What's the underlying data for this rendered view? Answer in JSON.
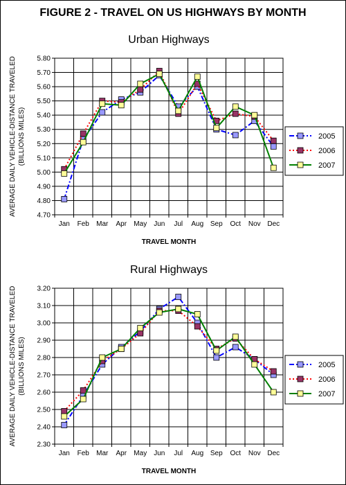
{
  "figure": {
    "title": "FIGURE 2 - TRAVEL ON US HIGHWAYS BY MONTH"
  },
  "chart_data": [
    {
      "type": "line",
      "title": "Urban Highways",
      "xlabel": "TRAVEL MONTH",
      "ylabel_lines": [
        "AVERAGE DAILY VEHICLE-DISTANCE TRAVELED",
        "(BILLIONS MILES)"
      ],
      "categories": [
        "Jan",
        "Feb",
        "Mar",
        "Apr",
        "May",
        "Jun",
        "Jul",
        "Aug",
        "Sep",
        "Oct",
        "Nov",
        "Dec"
      ],
      "ylim": [
        4.7,
        5.8
      ],
      "yticks": [
        "4.70",
        "4.80",
        "4.90",
        "5.00",
        "5.10",
        "5.20",
        "5.30",
        "5.40",
        "5.50",
        "5.60",
        "5.70",
        "5.80"
      ],
      "grid": true,
      "legend_position": "right",
      "series": [
        {
          "name": "2005",
          "color": "#0000ff",
          "marker_fill": "#9999ff",
          "dash": "dashdot",
          "values": [
            4.81,
            5.23,
            5.42,
            5.51,
            5.56,
            5.68,
            5.46,
            5.6,
            5.3,
            5.26,
            5.36,
            5.18
          ]
        },
        {
          "name": "2006",
          "color": "#ff0000",
          "marker_fill": "#993366",
          "dash": "dot",
          "values": [
            5.02,
            5.27,
            5.5,
            5.49,
            5.58,
            5.71,
            5.41,
            5.62,
            5.36,
            5.41,
            5.39,
            5.22
          ]
        },
        {
          "name": "2007",
          "color": "#008000",
          "marker_fill": "#ffff99",
          "dash": "solid",
          "values": [
            4.99,
            5.21,
            5.48,
            5.47,
            5.62,
            5.69,
            5.43,
            5.67,
            5.31,
            5.46,
            5.4,
            5.03
          ]
        }
      ]
    },
    {
      "type": "line",
      "title": "Rural Highways",
      "xlabel": "TRAVEL MONTH",
      "ylabel_lines": [
        "AVERAGE DAILY VEHICLE-DISTANCE TRAVELED",
        "(BILLIONS MILES)"
      ],
      "categories": [
        "Jan",
        "Feb",
        "Mar",
        "Apr",
        "May",
        "Jun",
        "Jul",
        "Aug",
        "Sep",
        "Oct",
        "Nov",
        "Dec"
      ],
      "ylim": [
        2.3,
        3.2
      ],
      "yticks": [
        "2.30",
        "2.40",
        "2.50",
        "2.60",
        "2.70",
        "2.80",
        "2.90",
        "3.00",
        "3.10",
        "3.20"
      ],
      "grid": true,
      "legend_position": "right",
      "series": [
        {
          "name": "2005",
          "color": "#0000ff",
          "marker_fill": "#9999ff",
          "dash": "dashdot",
          "values": [
            2.41,
            2.58,
            2.76,
            2.86,
            2.95,
            3.08,
            3.15,
            3.0,
            2.8,
            2.86,
            2.79,
            2.7
          ]
        },
        {
          "name": "2006",
          "color": "#ff0000",
          "marker_fill": "#993366",
          "dash": "dot",
          "values": [
            2.49,
            2.61,
            2.78,
            2.85,
            2.94,
            3.07,
            3.07,
            2.98,
            2.85,
            2.91,
            2.79,
            2.72
          ]
        },
        {
          "name": "2007",
          "color": "#008000",
          "marker_fill": "#ffff99",
          "dash": "solid",
          "values": [
            2.46,
            2.56,
            2.8,
            2.85,
            2.97,
            3.06,
            3.08,
            3.05,
            2.84,
            2.92,
            2.76,
            2.6
          ]
        }
      ]
    }
  ]
}
